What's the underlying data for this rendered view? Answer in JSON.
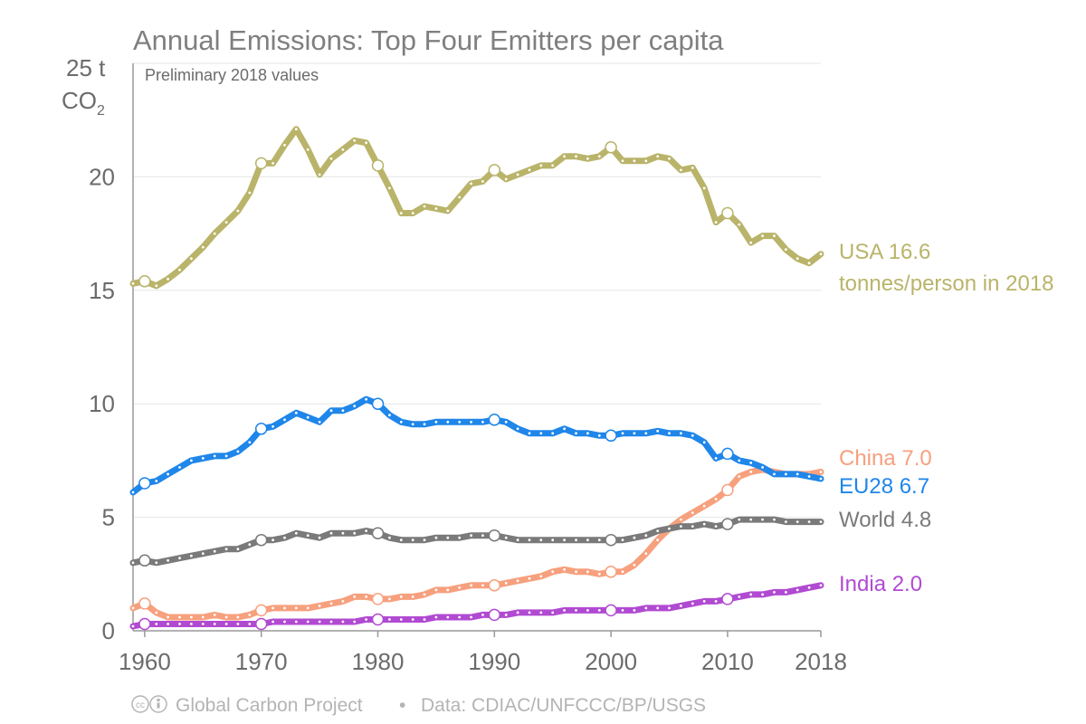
{
  "chart_data": {
    "type": "line",
    "title": "Annual Emissions: Top Four Emitters per capita",
    "subtitle": "Preliminary 2018 values",
    "yunit_main": "25 t",
    "yunit_co2": "CO",
    "yunit_sub": "2",
    "ylim": [
      0,
      25
    ],
    "xlim": [
      1959,
      2018
    ],
    "x_ticks": [
      {
        "value": 1960,
        "label": "1960"
      },
      {
        "value": 1970,
        "label": "1970"
      },
      {
        "value": 1980,
        "label": "1980"
      },
      {
        "value": 1990,
        "label": "1990"
      },
      {
        "value": 2000,
        "label": "2000"
      },
      {
        "value": 2010,
        "label": "2010"
      },
      {
        "value": 2018,
        "label": "2018"
      }
    ],
    "y_ticks": [
      {
        "value": 0,
        "label": "0"
      },
      {
        "value": 5,
        "label": "5"
      },
      {
        "value": 10,
        "label": "10"
      },
      {
        "value": 15,
        "label": "15"
      },
      {
        "value": 20,
        "label": "20"
      }
    ],
    "grid": true,
    "legend": "none",
    "x": [
      1959,
      1960,
      1961,
      1962,
      1963,
      1964,
      1965,
      1966,
      1967,
      1968,
      1969,
      1970,
      1971,
      1972,
      1973,
      1974,
      1975,
      1976,
      1977,
      1978,
      1979,
      1980,
      1981,
      1982,
      1983,
      1984,
      1985,
      1986,
      1987,
      1988,
      1989,
      1990,
      1991,
      1992,
      1993,
      1994,
      1995,
      1996,
      1997,
      1998,
      1999,
      2000,
      2001,
      2002,
      2003,
      2004,
      2005,
      2006,
      2007,
      2008,
      2009,
      2010,
      2011,
      2012,
      2013,
      2014,
      2015,
      2016,
      2017,
      2018
    ],
    "series": [
      {
        "key": "usa",
        "color": "#b9b46a",
        "label_line1": "USA 16.6",
        "label_line2": "tonnes/person in 2018",
        "values": [
          15.3,
          15.4,
          15.2,
          15.5,
          15.9,
          16.4,
          16.9,
          17.5,
          18.0,
          18.5,
          19.3,
          20.6,
          20.6,
          21.4,
          22.1,
          21.2,
          20.1,
          20.8,
          21.2,
          21.6,
          21.5,
          20.5,
          19.5,
          18.4,
          18.4,
          18.7,
          18.6,
          18.5,
          19.1,
          19.7,
          19.8,
          20.3,
          19.9,
          20.1,
          20.3,
          20.5,
          20.5,
          20.9,
          20.9,
          20.8,
          20.9,
          21.3,
          20.7,
          20.7,
          20.7,
          20.9,
          20.8,
          20.3,
          20.4,
          19.5,
          18.0,
          18.4,
          17.9,
          17.1,
          17.4,
          17.4,
          16.8,
          16.4,
          16.2,
          16.6
        ]
      },
      {
        "key": "china",
        "color": "#f7a07e",
        "label_line1": "China 7.0",
        "values": [
          1.0,
          1.2,
          0.8,
          0.6,
          0.6,
          0.6,
          0.6,
          0.7,
          0.6,
          0.6,
          0.7,
          0.9,
          1.0,
          1.0,
          1.0,
          1.0,
          1.1,
          1.2,
          1.3,
          1.5,
          1.5,
          1.4,
          1.4,
          1.5,
          1.5,
          1.6,
          1.8,
          1.8,
          1.9,
          2.0,
          2.0,
          2.0,
          2.1,
          2.2,
          2.3,
          2.4,
          2.6,
          2.7,
          2.6,
          2.6,
          2.5,
          2.6,
          2.6,
          2.9,
          3.4,
          4.0,
          4.5,
          4.9,
          5.2,
          5.5,
          5.8,
          6.2,
          6.8,
          7.0,
          7.1,
          7.0,
          6.9,
          6.9,
          6.9,
          7.0
        ]
      },
      {
        "key": "eu28",
        "color": "#1f86ea",
        "label_line1": "EU28 6.7",
        "values": [
          6.1,
          6.5,
          6.6,
          6.9,
          7.2,
          7.5,
          7.6,
          7.7,
          7.7,
          7.9,
          8.3,
          8.9,
          9.0,
          9.3,
          9.6,
          9.4,
          9.2,
          9.7,
          9.7,
          9.9,
          10.2,
          10.0,
          9.5,
          9.2,
          9.1,
          9.1,
          9.2,
          9.2,
          9.2,
          9.2,
          9.2,
          9.3,
          9.2,
          8.9,
          8.7,
          8.7,
          8.7,
          8.9,
          8.7,
          8.7,
          8.6,
          8.6,
          8.7,
          8.7,
          8.7,
          8.8,
          8.7,
          8.7,
          8.6,
          8.3,
          7.6,
          7.8,
          7.5,
          7.4,
          7.2,
          6.9,
          6.9,
          6.9,
          6.8,
          6.7
        ]
      },
      {
        "key": "world",
        "color": "#7a7a7a",
        "label_line1": "World 4.8",
        "values": [
          3.0,
          3.1,
          3.0,
          3.1,
          3.2,
          3.3,
          3.4,
          3.5,
          3.6,
          3.6,
          3.8,
          4.0,
          4.0,
          4.1,
          4.3,
          4.2,
          4.1,
          4.3,
          4.3,
          4.3,
          4.4,
          4.3,
          4.1,
          4.0,
          4.0,
          4.0,
          4.1,
          4.1,
          4.1,
          4.2,
          4.2,
          4.2,
          4.1,
          4.0,
          4.0,
          4.0,
          4.0,
          4.0,
          4.0,
          4.0,
          4.0,
          4.0,
          4.0,
          4.1,
          4.2,
          4.4,
          4.5,
          4.6,
          4.6,
          4.7,
          4.6,
          4.7,
          4.9,
          4.9,
          4.9,
          4.9,
          4.8,
          4.8,
          4.8,
          4.8
        ]
      },
      {
        "key": "india",
        "color": "#b14ad2",
        "label_line1": "India 2.0",
        "values": [
          0.2,
          0.3,
          0.3,
          0.3,
          0.3,
          0.3,
          0.3,
          0.3,
          0.3,
          0.3,
          0.3,
          0.3,
          0.4,
          0.4,
          0.4,
          0.4,
          0.4,
          0.4,
          0.4,
          0.4,
          0.5,
          0.5,
          0.5,
          0.5,
          0.5,
          0.5,
          0.6,
          0.6,
          0.6,
          0.6,
          0.7,
          0.7,
          0.7,
          0.8,
          0.8,
          0.8,
          0.8,
          0.9,
          0.9,
          0.9,
          0.9,
          0.9,
          0.9,
          0.9,
          1.0,
          1.0,
          1.0,
          1.1,
          1.2,
          1.3,
          1.3,
          1.4,
          1.5,
          1.6,
          1.6,
          1.7,
          1.7,
          1.8,
          1.9,
          2.0
        ]
      }
    ]
  },
  "footer": {
    "cc_glyph": "cc",
    "org": "Global Carbon Project",
    "separator": "•",
    "source": "Data: CDIAC/UNFCCC/BP/USGS"
  }
}
